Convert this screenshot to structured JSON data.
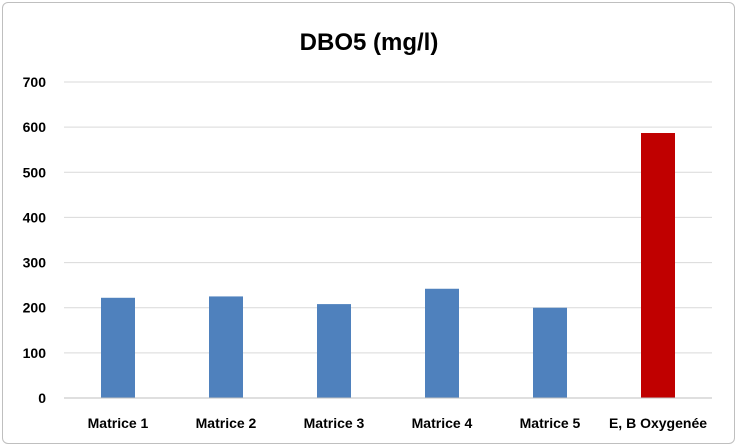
{
  "chart_data": {
    "type": "bar",
    "title": "DBO5 (mg/l)",
    "categories": [
      "Matrice 1",
      "Matrice 2",
      "Matrice 3",
      "Matrice 4",
      "Matrice 5",
      "E, B Oxygenée"
    ],
    "values": [
      222,
      225,
      208,
      242,
      200,
      587
    ],
    "colors": [
      "#4f81bd",
      "#4f81bd",
      "#4f81bd",
      "#4f81bd",
      "#4f81bd",
      "#c00000"
    ],
    "ylim": [
      0,
      700
    ],
    "yticks": [
      0,
      100,
      200,
      300,
      400,
      500,
      600,
      700
    ],
    "grid": true,
    "legend": "none",
    "xlabel": "",
    "ylabel": ""
  }
}
